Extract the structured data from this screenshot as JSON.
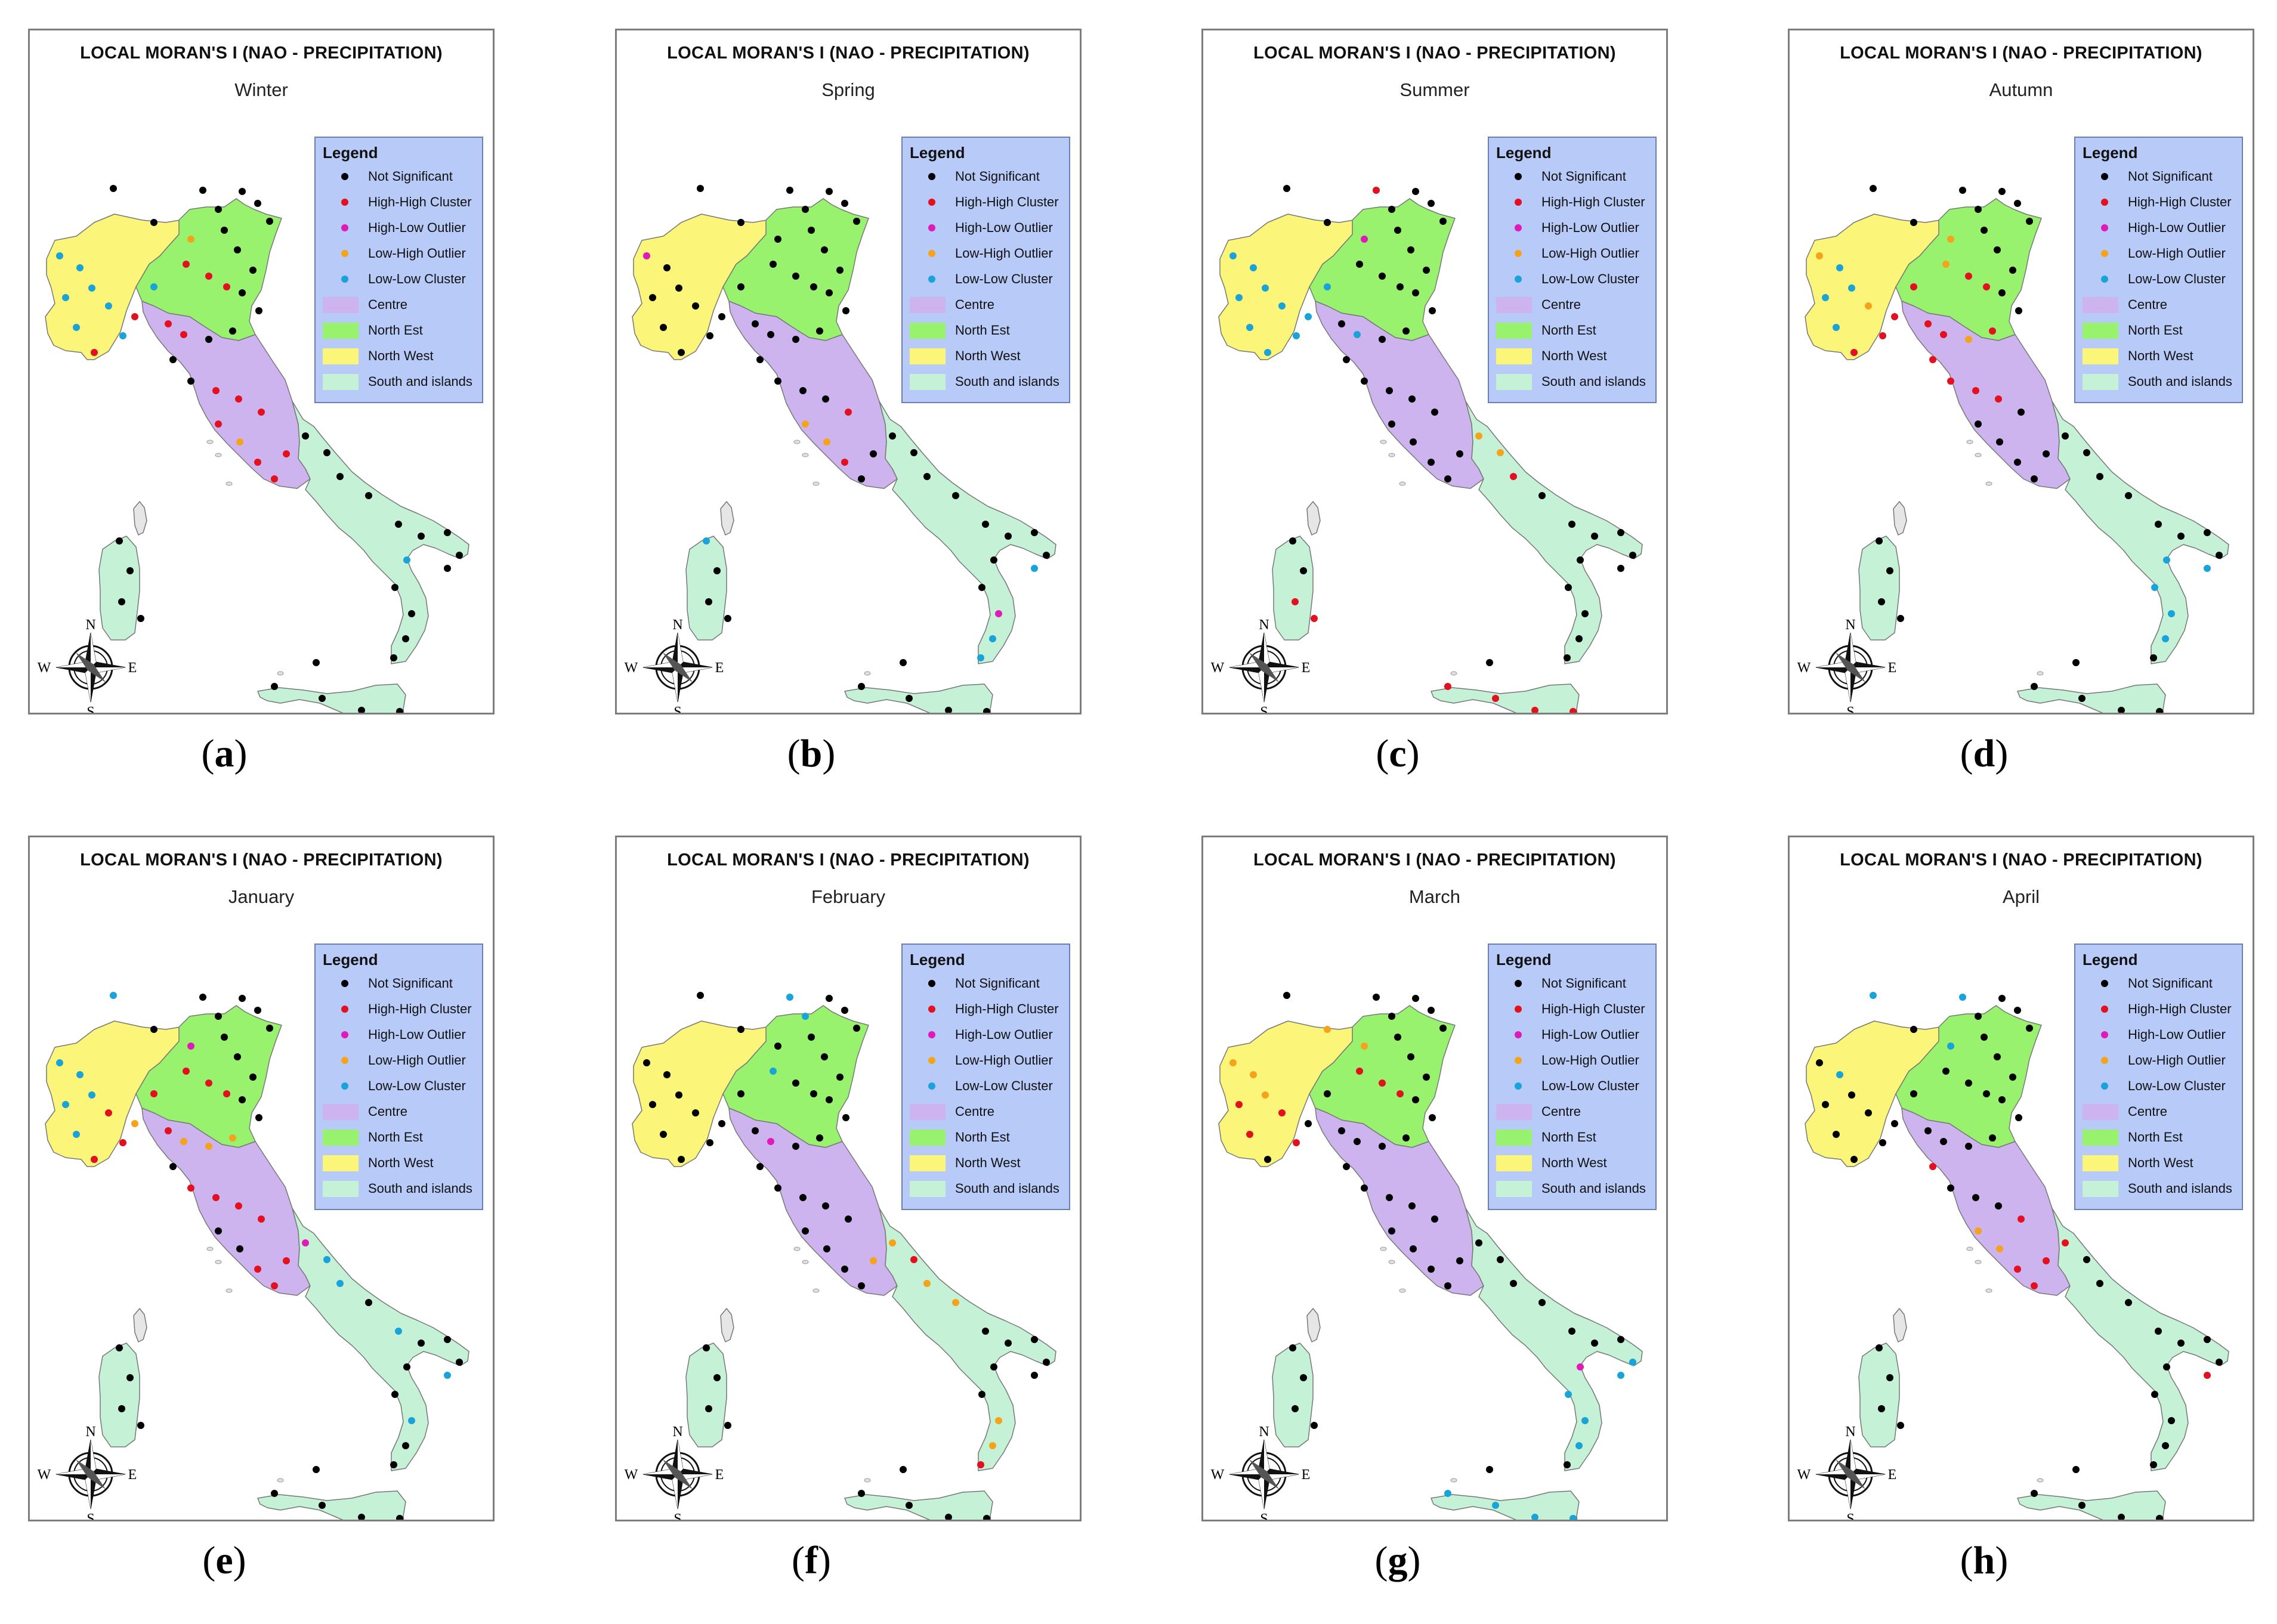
{
  "figure_title": "LOCAL MORAN'S I (NAO - PRECIPITATION)",
  "legend": {
    "title": "Legend",
    "items": [
      {
        "label": "Not Significant",
        "kind": "dot",
        "color": "#000000"
      },
      {
        "label": "High-High Cluster",
        "kind": "dot",
        "color": "#e3101f"
      },
      {
        "label": "High-Low Outlier",
        "kind": "dot",
        "color": "#e01ab8"
      },
      {
        "label": "Low-High Outlier",
        "kind": "dot",
        "color": "#f5a31a"
      },
      {
        "label": "Low-Low Cluster",
        "kind": "dot",
        "color": "#1aa3d8"
      },
      {
        "label": "Centre",
        "kind": "swatch",
        "color": "#cdb4ee"
      },
      {
        "label": "North Est",
        "kind": "swatch",
        "color": "#99f26e"
      },
      {
        "label": "North West",
        "kind": "swatch",
        "color": "#fbf57a"
      },
      {
        "label": "South and islands",
        "kind": "swatch",
        "color": "#c5f2d7"
      }
    ]
  },
  "compass": {
    "n": "N",
    "s": "S",
    "e": "E",
    "w": "W"
  },
  "panels": [
    {
      "caption_open": "(",
      "caption_letter": "a",
      "caption_close": ")",
      "subtitle": "Winter"
    },
    {
      "caption_open": "(",
      "caption_letter": "b",
      "caption_close": ")",
      "subtitle": "Spring"
    },
    {
      "caption_open": "(",
      "caption_letter": "c",
      "caption_close": ")",
      "subtitle": "Summer"
    },
    {
      "caption_open": "(",
      "caption_letter": "d",
      "caption_close": ")",
      "subtitle": "Autumn"
    },
    {
      "caption_open": "(",
      "caption_letter": "e",
      "caption_close": ")",
      "subtitle": "January"
    },
    {
      "caption_open": "(",
      "caption_letter": "f",
      "caption_close": ")",
      "subtitle": "February"
    },
    {
      "caption_open": "(",
      "caption_letter": "g",
      "caption_close": ")",
      "subtitle": "March"
    },
    {
      "caption_open": "(",
      "caption_letter": "h",
      "caption_close": ")",
      "subtitle": "April"
    }
  ],
  "region_colors": {
    "north_west": "#fbf57a",
    "north_est": "#99f26e",
    "centre": "#cdb4ee",
    "south": "#c5f2d7",
    "border": "#777777"
  }
}
